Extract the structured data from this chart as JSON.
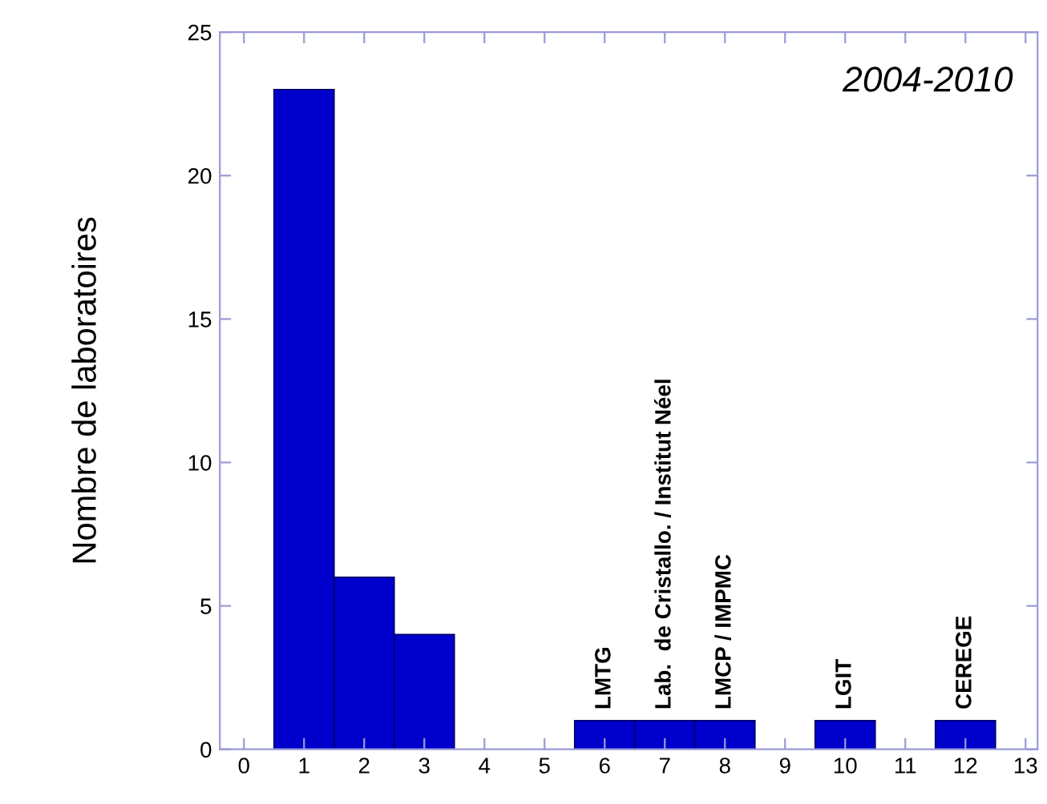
{
  "chart_data": {
    "type": "histogram",
    "ylabel": "Nombre de laboratoires",
    "bins": [
      0.5,
      1.5,
      2.5,
      3.5,
      4.5,
      5.5,
      6.5,
      7.5,
      8.5,
      9.5,
      10.5,
      11.5,
      12.5
    ],
    "values": [
      23,
      6,
      4,
      0,
      0,
      1,
      1,
      1,
      0,
      1,
      0,
      1
    ],
    "color": "#0000cc",
    "xlim": [
      -0.4,
      13.2
    ],
    "xticks": [
      0,
      1,
      2,
      3,
      4,
      5,
      6,
      7,
      8,
      9,
      10,
      11,
      12,
      13
    ],
    "ylim": [
      0,
      25
    ],
    "yticks": [
      0,
      5,
      10,
      15,
      20,
      25
    ],
    "grid": false,
    "annotations": [
      "2004-2010",
      {
        "text": "LMTG",
        "x": 6,
        "y": 1
      },
      {
        "text": "Lab.  de Cristallo. / Institut Néel",
        "x": 7,
        "y": 1
      },
      {
        "text": "LMCP / IMPMC",
        "x": 8,
        "y": 1
      },
      {
        "text": "LGIT",
        "x": 10,
        "y": 1
      },
      {
        "text": "CEREGE",
        "x": 12,
        "y": 1
      }
    ]
  }
}
